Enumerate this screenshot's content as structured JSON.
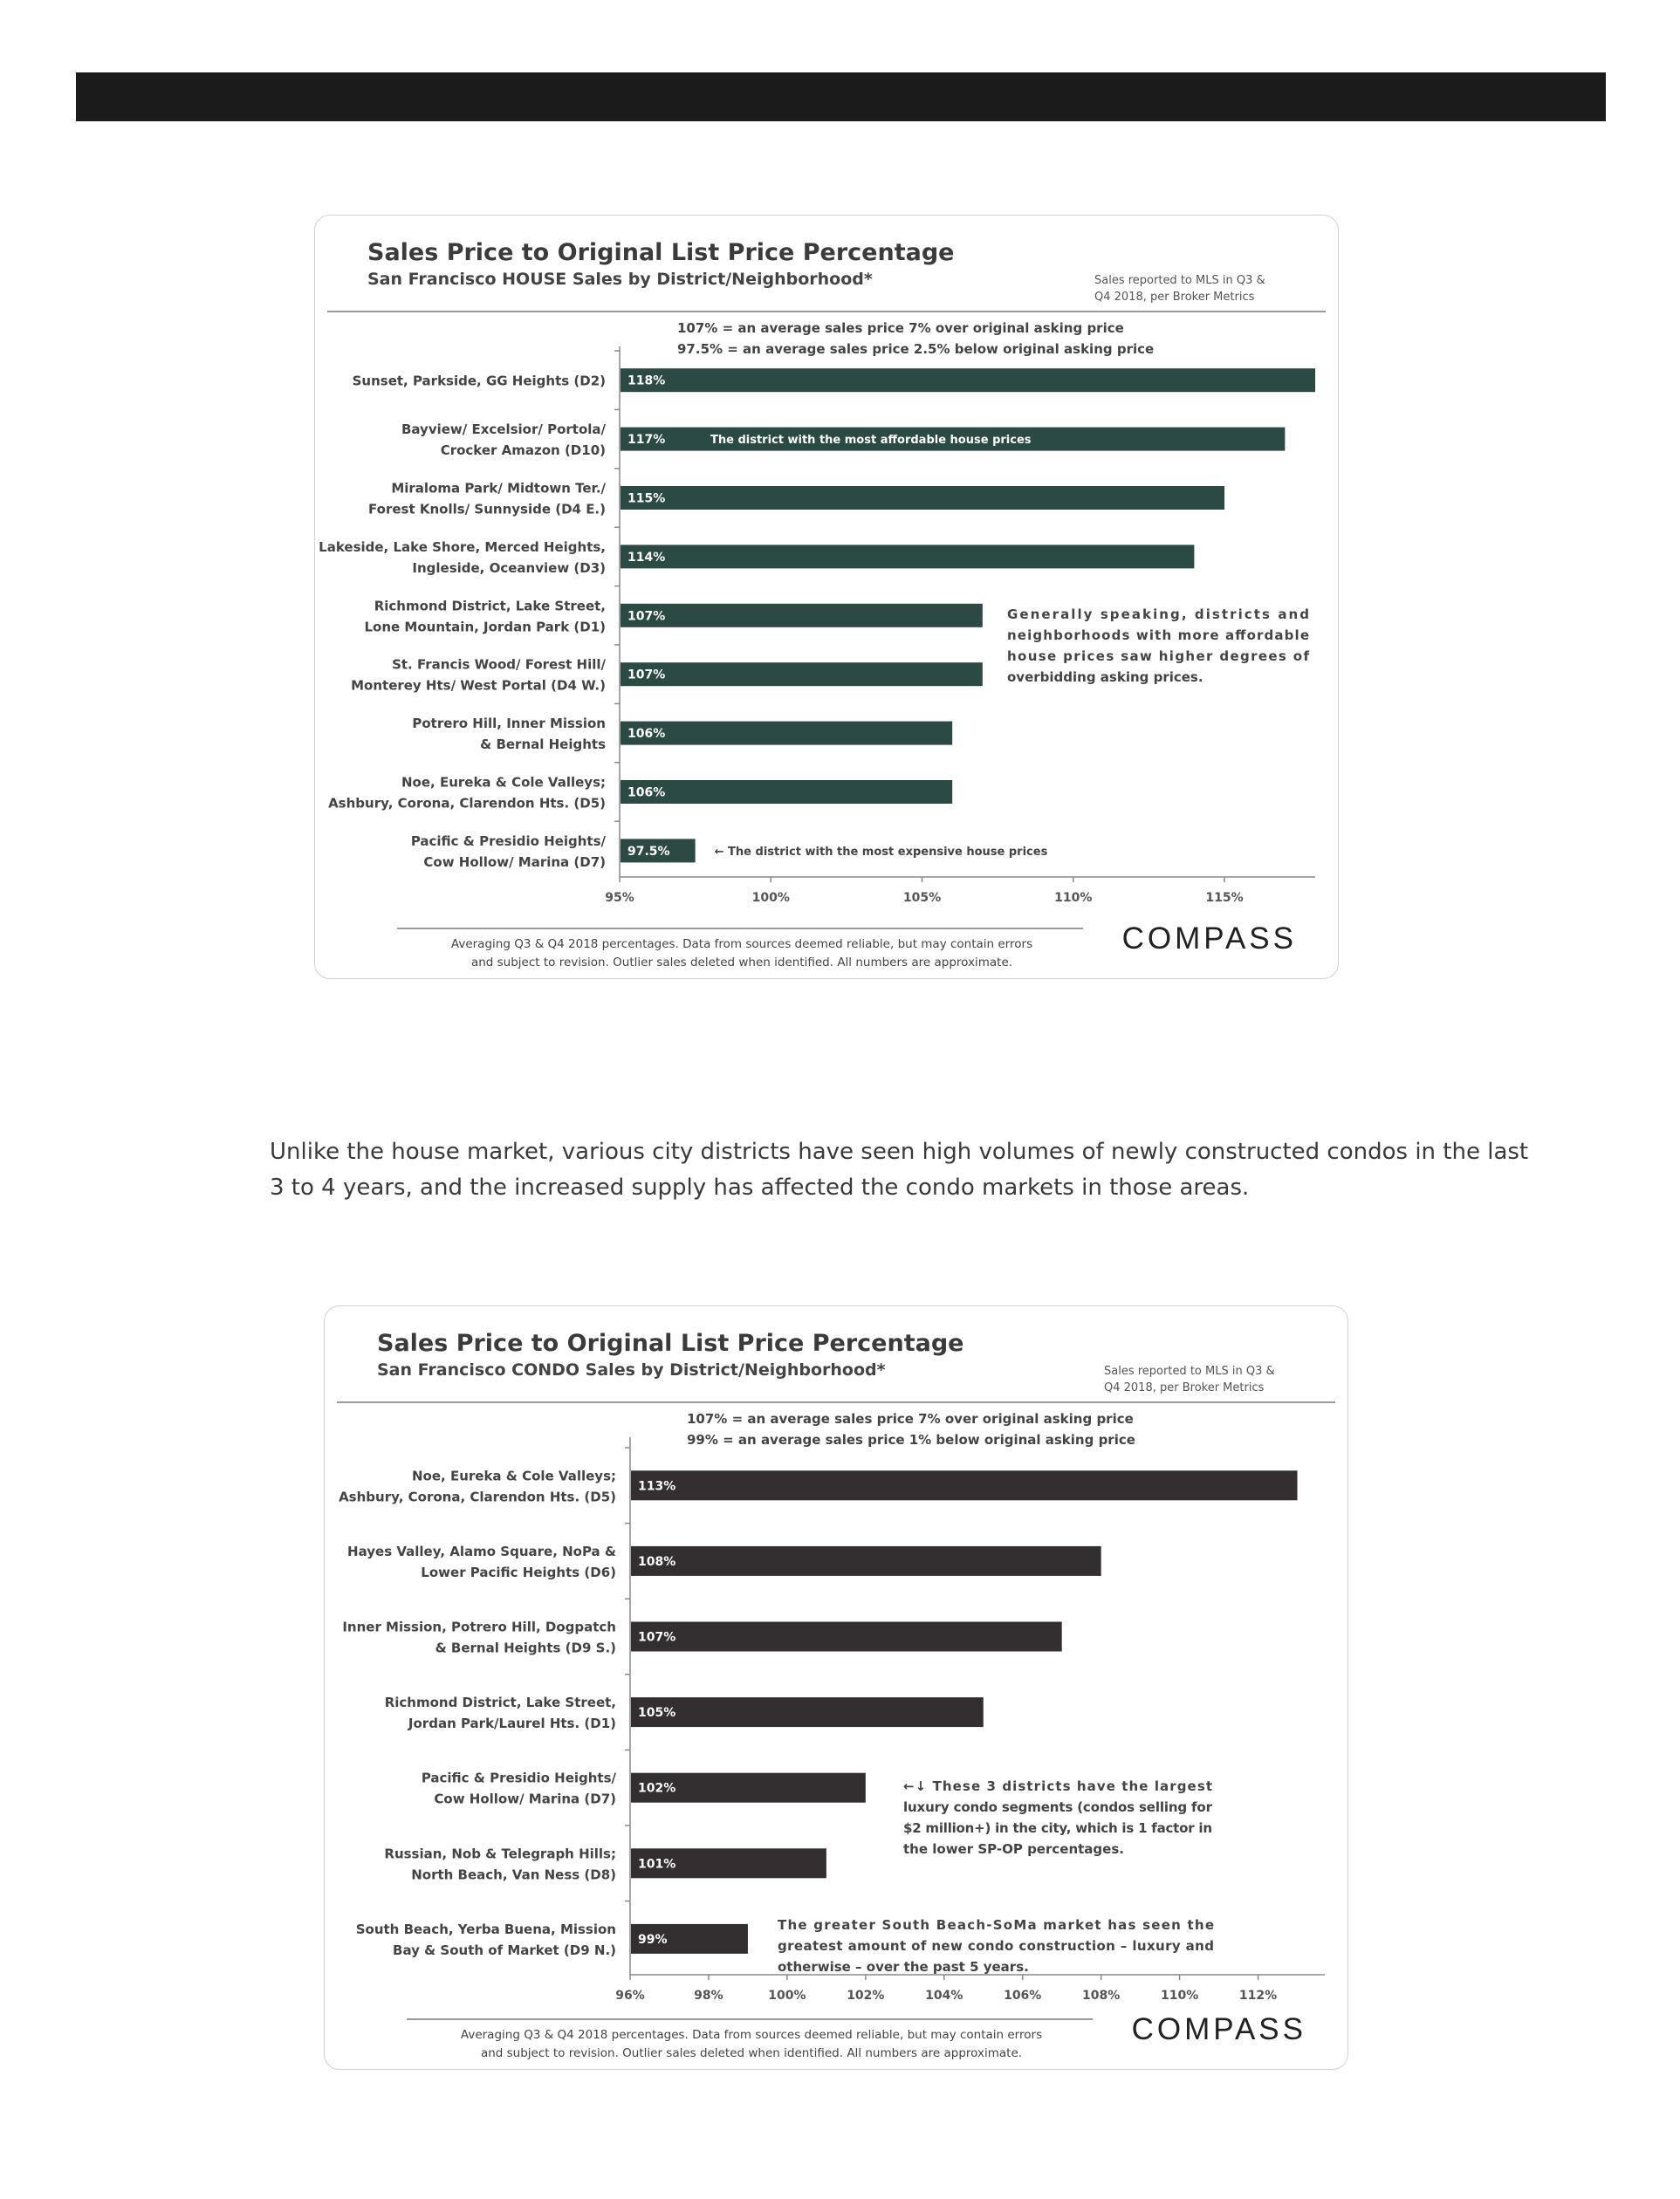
{
  "chart_data": [
    {
      "type": "bar",
      "orientation": "horizontal",
      "title": "Sales Price to Original List Price Percentage",
      "subtitle": "San Francisco HOUSE Sales by District/Neighborhood*",
      "source_note": [
        "Sales reported to MLS in Q3 &",
        "Q4 2018, per Broker Metrics"
      ],
      "definitions": [
        "107% = an average sales price 7% over original asking price",
        "97.5% = an average sales price 2.5% below original asking price"
      ],
      "categories": [
        [
          "Sunset, Parkside, GG Heights (D2)"
        ],
        [
          "Bayview/ Excelsior/ Portola/",
          "Crocker Amazon (D10)"
        ],
        [
          "Miraloma Park/ Midtown Ter./",
          "Forest Knolls/ Sunnyside (D4 E.)"
        ],
        [
          "Lakeside, Lake Shore, Merced Heights,",
          "Ingleside, Oceanview (D3)"
        ],
        [
          "Richmond District, Lake Street,",
          "Lone Mountain, Jordan Park (D1)"
        ],
        [
          "St. Francis Wood/ Forest Hill/",
          "Monterey Hts/ West Portal (D4 W.)"
        ],
        [
          "Potrero Hill, Inner Mission",
          "& Bernal Heights"
        ],
        [
          "Noe, Eureka & Cole Valleys;",
          "Ashbury, Corona, Clarendon Hts. (D5)"
        ],
        [
          "Pacific & Presidio Heights/",
          "Cow Hollow/ Marina (D7)"
        ]
      ],
      "values": [
        118,
        117,
        115,
        114,
        107,
        107,
        106,
        106,
        97.5
      ],
      "value_labels": [
        "118%",
        "117%",
        "115%",
        "114%",
        "107%",
        "107%",
        "106%",
        "106%",
        "97.5%"
      ],
      "xlim": [
        95,
        118
      ],
      "ticks": [
        95,
        100,
        105,
        110,
        115
      ],
      "tick_labels": [
        "95%",
        "100%",
        "105%",
        "110%",
        "115%"
      ],
      "bar_color": "#2c4a44",
      "annotations": [
        {
          "row": 1,
          "placement": "inside-bar",
          "lines": [
            "The district with the most affordable house prices"
          ]
        },
        {
          "row": 8,
          "placement": "after-bar",
          "lines": [
            "← The district with the most expensive house prices"
          ]
        },
        {
          "placement": "side-note",
          "rows": [
            4,
            5
          ],
          "lines": [
            "Generally speaking, districts and",
            "neighborhoods with more affordable",
            "house prices saw higher degrees of",
            "overbidding asking prices."
          ]
        }
      ],
      "footer": [
        "Averaging Q3 & Q4 2018 percentages. Data from sources deemed reliable, but may contain errors",
        "and subject to revision. Outlier sales deleted when identified. All numbers are approximate."
      ],
      "logo": "COMPASS",
      "grid": false,
      "legend": "none"
    },
    {
      "type": "bar",
      "orientation": "horizontal",
      "title": "Sales Price to Original List Price Percentage",
      "subtitle": "San Francisco CONDO Sales by District/Neighborhood*",
      "source_note": [
        "Sales reported to MLS in Q3 &",
        "Q4 2018, per Broker Metrics"
      ],
      "definitions": [
        "107% = an average sales price 7% over original asking price",
        "99% = an average sales price 1% below original asking price"
      ],
      "categories": [
        [
          "Noe, Eureka & Cole Valleys;",
          "Ashbury, Corona, Clarendon Hts. (D5)"
        ],
        [
          "Hayes Valley, Alamo Square, NoPa &",
          "Lower Pacific Heights (D6)"
        ],
        [
          "Inner Mission, Potrero Hill, Dogpatch",
          "& Bernal Heights (D9 S.)"
        ],
        [
          "Richmond District, Lake Street,",
          "Jordan Park/Laurel Hts. (D1)"
        ],
        [
          "Pacific & Presidio Heights/",
          "Cow Hollow/ Marina (D7)"
        ],
        [
          "Russian, Nob & Telegraph Hills;",
          "North Beach, Van Ness (D8)"
        ],
        [
          "South Beach, Yerba Buena, Mission",
          "Bay & South of Market (D9 N.)"
        ]
      ],
      "values": [
        113,
        108,
        107,
        105,
        102,
        101,
        99
      ],
      "value_labels": [
        "113%",
        "108%",
        "107%",
        "105%",
        "102%",
        "101%",
        "99%"
      ],
      "xlim": [
        96,
        113.7
      ],
      "ticks": [
        96,
        98,
        100,
        102,
        104,
        106,
        108,
        110,
        112
      ],
      "tick_labels": [
        "96%",
        "98%",
        "100%",
        "102%",
        "104%",
        "106%",
        "108%",
        "110%",
        "112%"
      ],
      "bar_color": "#332f30",
      "annotations": [
        {
          "placement": "side-note",
          "rows": [
            4,
            5
          ],
          "lines": [
            "←↓ These 3 districts have the largest",
            "luxury condo segments (condos selling for",
            "$2 million+) in the city, which is 1 factor in",
            "the lower SP-OP percentages."
          ]
        },
        {
          "placement": "side-note",
          "rows": [
            6
          ],
          "lines": [
            "The greater South Beach-SoMa market has seen the",
            "greatest amount of new condo construction – luxury and",
            "otherwise – over the past 5 years."
          ]
        }
      ],
      "footer": [
        "Averaging Q3 & Q4 2018 percentages. Data from sources deemed reliable, but may contain errors",
        "and subject to revision. Outlier sales deleted when identified. All numbers are approximate."
      ],
      "logo": "COMPASS",
      "grid": false,
      "legend": "none"
    }
  ],
  "body_text": {
    "line1": "Unlike the house market, various city districts have seen high volumes of newly constructed condos in the last",
    "line2": "3 to 4 years, and the increased supply has affected the condo markets in those areas."
  }
}
